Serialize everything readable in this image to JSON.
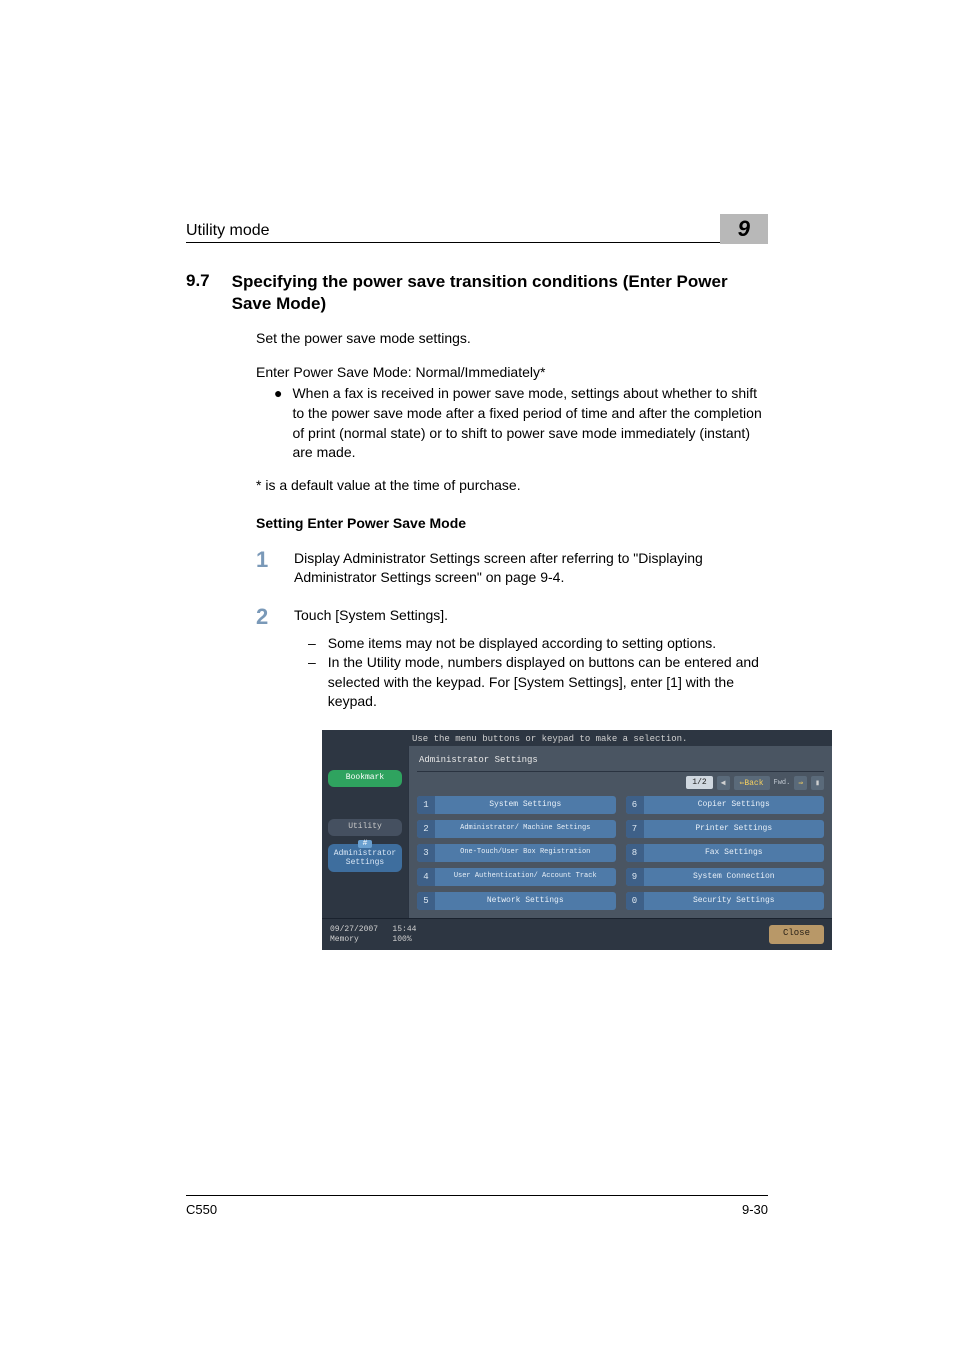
{
  "header": {
    "running_head": "Utility mode",
    "chapter_number": "9"
  },
  "section": {
    "number": "9.7",
    "title": "Specifying the power save transition conditions (Enter Power Save Mode)"
  },
  "body": {
    "intro1": "Set the power save mode settings.",
    "intro2": "Enter Power Save Mode: Normal/Immediately*",
    "bullet1": "When a fax is received in power save mode, settings about whether to shift to the power save mode after a fixed period of time and after the completion of print (normal state) or to shift to power save mode immediately (instant) are made.",
    "note": "* is a default value at the time of purchase.",
    "sub_heading": "Setting Enter Power Save Mode",
    "step1": "Display Administrator Settings screen after referring to \"Displaying Administrator Settings screen\" on page 9-4.",
    "step2": "Touch [System Settings].",
    "step2_sub1": "Some items may not be displayed according to setting options.",
    "step2_sub2": "In the Utility mode, numbers displayed on buttons can be entered and selected with the keypad. For [System Settings], enter [1] with the keypad."
  },
  "screenshot": {
    "background": "#2d3642",
    "panel_bg": "#4a5562",
    "button_bg": "#4e7aa8",
    "instruction": "Use the menu buttons or keypad to make a selection.",
    "sidebar": {
      "bookmark": "Bookmark",
      "utility": "Utility",
      "admin_num": "#",
      "admin": "Administrator Settings"
    },
    "panel": {
      "title": "Administrator Settings",
      "nav": {
        "page": "1/2",
        "arrow_left": "◀",
        "back": "⇐Back",
        "fwd_label": "Fwd.",
        "arrow_right": "⇒",
        "bar": "▮"
      },
      "buttons": [
        {
          "n": "1",
          "label": "System Settings"
        },
        {
          "n": "6",
          "label": "Copier Settings"
        },
        {
          "n": "2",
          "label": "Administrator/\nMachine Settings",
          "two": true
        },
        {
          "n": "7",
          "label": "Printer Settings"
        },
        {
          "n": "3",
          "label": "One-Touch/User Box\nRegistration",
          "two": true
        },
        {
          "n": "8",
          "label": "Fax Settings"
        },
        {
          "n": "4",
          "label": "User Authentication/\nAccount Track",
          "two": true
        },
        {
          "n": "9",
          "label": "System Connection"
        },
        {
          "n": "5",
          "label": "Network Settings"
        },
        {
          "n": "0",
          "label": "Security Settings"
        }
      ]
    },
    "footer": {
      "date": "09/27/2007",
      "time": "15:44",
      "mem_label": "Memory",
      "mem_val": "100%",
      "close": "Close"
    }
  },
  "footer": {
    "model": "C550",
    "pagenum": "9-30"
  }
}
